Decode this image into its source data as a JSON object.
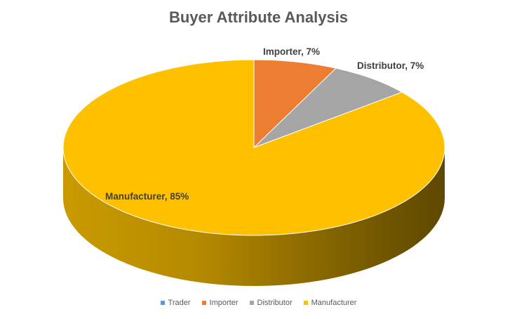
{
  "chart_data": {
    "type": "pie",
    "title": "Buyer Attribute Analysis",
    "categories": [
      "Trader",
      "Importer",
      "Distributor",
      "Manufacturer"
    ],
    "values": [
      0,
      7,
      7,
      85
    ],
    "data_labels": [
      "",
      "Importer, 7%",
      "Distributor, 7%",
      "Manufacturer, 85%"
    ],
    "colors": [
      "#5B9BD5",
      "#ED7D31",
      "#A5A5A5",
      "#FFC000"
    ],
    "legend_position": "bottom",
    "style": "3d"
  }
}
